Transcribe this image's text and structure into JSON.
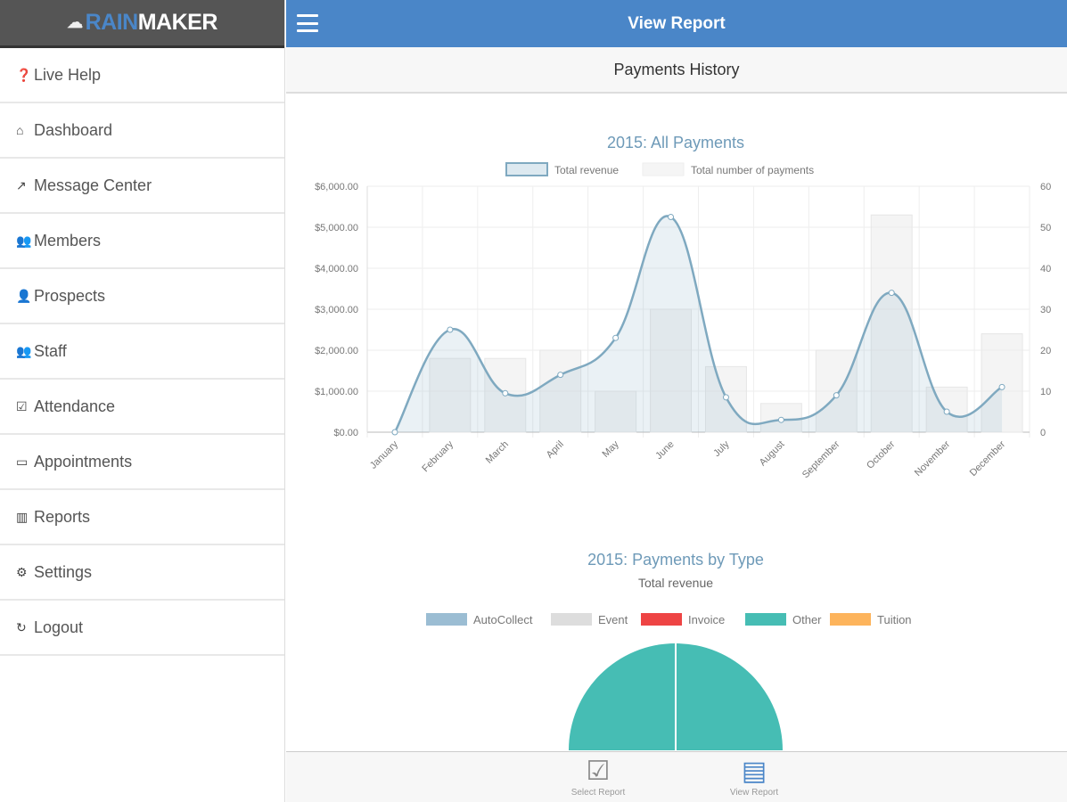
{
  "logo": {
    "part1": "RAIN",
    "part2": "MAKER",
    "icon": "cloud-icon"
  },
  "sidebar": {
    "items": [
      {
        "label": "Live Help",
        "icon": "question-circle-icon",
        "glyph": "❓"
      },
      {
        "label": "Dashboard",
        "icon": "home-icon",
        "glyph": "⌂"
      },
      {
        "label": "Message Center",
        "icon": "share-icon",
        "glyph": "↗"
      },
      {
        "label": "Members",
        "icon": "users-icon",
        "glyph": "👥"
      },
      {
        "label": "Prospects",
        "icon": "user-plus-icon",
        "glyph": "👤"
      },
      {
        "label": "Staff",
        "icon": "user-group-icon",
        "glyph": "👥"
      },
      {
        "label": "Attendance",
        "icon": "check-square-icon",
        "glyph": "☑"
      },
      {
        "label": "Appointments",
        "icon": "calendar-icon",
        "glyph": "▭"
      },
      {
        "label": "Reports",
        "icon": "bar-chart-icon",
        "glyph": "▥"
      },
      {
        "label": "Settings",
        "icon": "gear-icon",
        "glyph": "⚙"
      },
      {
        "label": "Logout",
        "icon": "logout-icon",
        "glyph": "↻"
      }
    ]
  },
  "topbar": {
    "title": "View Report"
  },
  "subheader": {
    "title": "Payments History"
  },
  "chart_data": [
    {
      "type": "line+bar",
      "title": "2015: All Payments",
      "categories": [
        "January",
        "February",
        "March",
        "April",
        "May",
        "June",
        "July",
        "August",
        "September",
        "October",
        "November",
        "December"
      ],
      "series": [
        {
          "name": "Total revenue",
          "type": "area",
          "axis": "left",
          "values": [
            0,
            2500,
            950,
            1400,
            2300,
            5250,
            850,
            300,
            900,
            3400,
            500,
            1100
          ],
          "color": "#7fa9c0"
        },
        {
          "name": "Total number of payments",
          "type": "bar",
          "axis": "right",
          "values": [
            0,
            18,
            18,
            20,
            10,
            30,
            16,
            7,
            20,
            53,
            11,
            24
          ],
          "color": "#eeeeee"
        }
      ],
      "y_left": {
        "ticks": [
          "$0.00",
          "$1,000.00",
          "$2,000.00",
          "$3,000.00",
          "$4,000.00",
          "$5,000.00",
          "$6,000.00"
        ],
        "range": [
          0,
          6000
        ]
      },
      "y_right": {
        "ticks": [
          "0",
          "10",
          "20",
          "30",
          "40",
          "50",
          "60"
        ],
        "range": [
          0,
          60
        ]
      },
      "grid": true,
      "legend": "top"
    },
    {
      "type": "pie",
      "title": "2015: Payments by Type",
      "subtitle": "Total revenue",
      "labels": [
        "AutoCollect",
        "Event",
        "Invoice",
        "Other",
        "Tuition"
      ],
      "colors": [
        "#9bbdd3",
        "#dddddd",
        "#ee4444",
        "#46bdb4",
        "#fdb45c"
      ],
      "values": [
        0,
        0,
        0,
        100,
        0
      ],
      "legend": "top"
    }
  ],
  "footer": {
    "items": [
      {
        "label": "Select Report",
        "icon": "check-square-icon"
      },
      {
        "label": "View Report",
        "icon": "document-icon"
      }
    ]
  }
}
